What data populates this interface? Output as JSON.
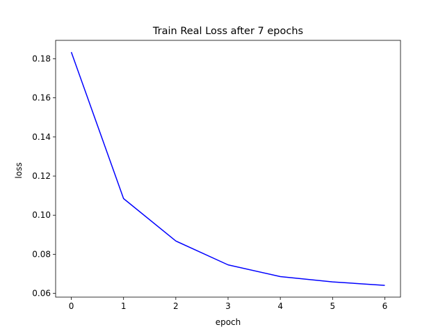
{
  "chart_data": {
    "type": "line",
    "title": "Train Real Loss after 7 epochs",
    "xlabel": "epoch",
    "ylabel": "loss",
    "x": [
      0,
      1,
      2,
      3,
      4,
      5,
      6
    ],
    "series": [
      {
        "values": [
          0.1834,
          0.1085,
          0.0868,
          0.0746,
          0.0686,
          0.0659,
          0.0641
        ],
        "color": "#0000ff"
      }
    ],
    "xticks": [
      0,
      1,
      2,
      3,
      4,
      5,
      6
    ],
    "yticks": [
      0.06,
      0.08,
      0.1,
      0.12,
      0.14,
      0.16,
      0.18
    ],
    "xtick_labels": [
      "0",
      "1",
      "2",
      "3",
      "4",
      "5",
      "6"
    ],
    "ytick_labels": [
      "0.06",
      "0.08",
      "0.10",
      "0.12",
      "0.14",
      "0.16",
      "0.18"
    ],
    "xlim": [
      -0.3,
      6.3
    ],
    "ylim": [
      0.0581,
      0.1894
    ],
    "grid": false,
    "legend": "none"
  }
}
